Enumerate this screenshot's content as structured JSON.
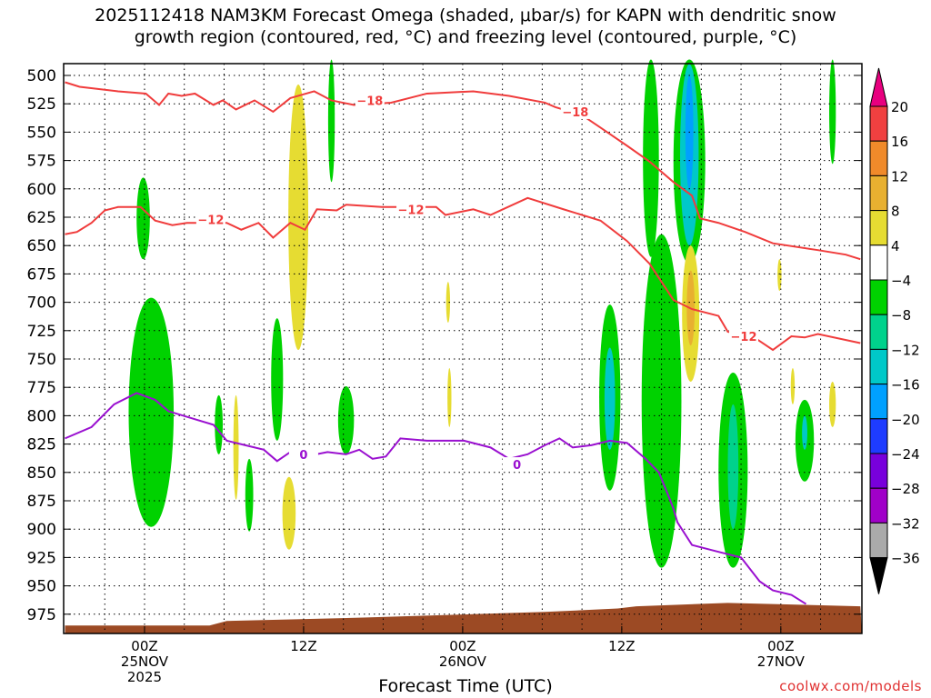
{
  "chart_data": {
    "type": "time-height",
    "title_line1": "2025112418 NAM3KM Forecast Omega (shaded, μbar/s) for KAPN with dendritic snow",
    "title_line2": "growth region (contoured, red, °C) and freezing level (contoured, purple, °C)",
    "xlabel": "Forecast Time (UTC)",
    "xlim_hours": [
      0,
      60
    ],
    "ylim_hpa": [
      490,
      992
    ],
    "y_ticks": [
      500,
      525,
      550,
      575,
      600,
      625,
      650,
      675,
      700,
      725,
      750,
      775,
      800,
      825,
      850,
      875,
      900,
      925,
      950,
      975
    ],
    "x_ticks": [
      {
        "hour": 6,
        "lines": [
          "00Z",
          "25NOV",
          "2025"
        ]
      },
      {
        "hour": 18,
        "lines": [
          "12Z"
        ]
      },
      {
        "hour": 30,
        "lines": [
          "00Z",
          "26NOV"
        ]
      },
      {
        "hour": 42,
        "lines": [
          "12Z"
        ]
      },
      {
        "hour": 54,
        "lines": [
          "00Z",
          "27NOV"
        ]
      }
    ],
    "grid_every_hours": 3,
    "colorbar": {
      "labels": [
        "20",
        "16",
        "12",
        "8",
        "4",
        "−4",
        "−8",
        "−12",
        "−16",
        "−20",
        "−24",
        "−28",
        "−32",
        "−36"
      ],
      "over_color": "#e8007f",
      "under_color": "#000000",
      "colors": [
        "#f04040",
        "#f08a2a",
        "#e8b030",
        "#e6dc32",
        "#ffffff",
        "#00d200",
        "#00d28c",
        "#00c8c8",
        "#00a0ff",
        "#1e3cff",
        "#7800dc",
        "#a000c8",
        "#aaaaaa"
      ]
    },
    "contours": [
      {
        "name": "dgz-minus18",
        "level": "−18",
        "color": "#f03c3c",
        "labels": [
          {
            "hour": 23,
            "p": 522
          },
          {
            "hour": 38.5,
            "p": 532
          }
        ],
        "points": [
          [
            0,
            506
          ],
          [
            1.1,
            510
          ],
          [
            4,
            514
          ],
          [
            6.1,
            516
          ],
          [
            7.1,
            526
          ],
          [
            7.8,
            516
          ],
          [
            8.8,
            518
          ],
          [
            9.8,
            516
          ],
          [
            11.2,
            526
          ],
          [
            11.9,
            522
          ],
          [
            12.9,
            530
          ],
          [
            14.3,
            522
          ],
          [
            15.7,
            532
          ],
          [
            17,
            520
          ],
          [
            18.8,
            514
          ],
          [
            20.1,
            522
          ],
          [
            21.8,
            526
          ],
          [
            24.6,
            524
          ],
          [
            27.3,
            516
          ],
          [
            30.8,
            514
          ],
          [
            33.5,
            518
          ],
          [
            36.2,
            524
          ],
          [
            37,
            528
          ],
          [
            39,
            535
          ],
          [
            40.4,
            546
          ],
          [
            42.4,
            562
          ],
          [
            44.1,
            576
          ],
          [
            45.9,
            594
          ],
          [
            47.3,
            606
          ],
          [
            47.9,
            626
          ],
          [
            49.3,
            630
          ],
          [
            51.3,
            638
          ],
          [
            53.4,
            648
          ],
          [
            56.8,
            654
          ],
          [
            58.9,
            658
          ],
          [
            60,
            662
          ]
        ]
      },
      {
        "name": "dgz-minus12",
        "level": "−12",
        "color": "#f03c3c",
        "labels": [
          {
            "hour": 11,
            "p": 627
          },
          {
            "hour": 26.1,
            "p": 618
          },
          {
            "hour": 51.2,
            "p": 730
          }
        ],
        "points": [
          [
            0,
            640
          ],
          [
            0.9,
            638
          ],
          [
            2,
            630
          ],
          [
            3,
            619
          ],
          [
            4,
            616
          ],
          [
            5.7,
            616
          ],
          [
            6.8,
            628
          ],
          [
            8.1,
            632
          ],
          [
            9.2,
            630
          ],
          [
            12.2,
            630
          ],
          [
            13.3,
            636
          ],
          [
            14.6,
            630
          ],
          [
            15.7,
            643
          ],
          [
            17,
            630
          ],
          [
            18.1,
            636
          ],
          [
            19,
            618
          ],
          [
            20.5,
            619
          ],
          [
            21.2,
            614
          ],
          [
            23.9,
            616
          ],
          [
            28,
            616
          ],
          [
            28.7,
            623
          ],
          [
            30.8,
            618
          ],
          [
            32.1,
            623
          ],
          [
            34.9,
            608
          ],
          [
            37.6,
            618
          ],
          [
            40.4,
            628
          ],
          [
            42.4,
            646
          ],
          [
            44.1,
            666
          ],
          [
            45.9,
            698
          ],
          [
            47.3,
            706
          ],
          [
            49.3,
            712
          ],
          [
            50,
            726
          ],
          [
            52,
            731
          ],
          [
            53.4,
            742
          ],
          [
            54.8,
            730
          ],
          [
            55.8,
            731
          ],
          [
            56.8,
            728
          ],
          [
            60,
            736
          ]
        ]
      },
      {
        "name": "freezing-level",
        "level": "0",
        "color": "#9a10d0",
        "labels": [
          {
            "hour": 18,
            "p": 834
          },
          {
            "hour": 34.1,
            "p": 843
          }
        ],
        "points": [
          [
            0,
            820
          ],
          [
            2,
            810
          ],
          [
            3.7,
            790
          ],
          [
            5.4,
            780
          ],
          [
            6.8,
            786
          ],
          [
            7.8,
            796
          ],
          [
            9.5,
            802
          ],
          [
            11.2,
            808
          ],
          [
            12.2,
            822
          ],
          [
            13.6,
            826
          ],
          [
            15,
            830
          ],
          [
            16,
            840
          ],
          [
            17,
            832
          ],
          [
            18.1,
            836
          ],
          [
            19.8,
            832
          ],
          [
            21.2,
            834
          ],
          [
            22.2,
            830
          ],
          [
            23.2,
            838
          ],
          [
            24.2,
            836
          ],
          [
            25.3,
            820
          ],
          [
            27.3,
            822
          ],
          [
            30.1,
            822
          ],
          [
            32.1,
            828
          ],
          [
            33.5,
            838
          ],
          [
            34.9,
            834
          ],
          [
            36.2,
            826
          ],
          [
            37.3,
            820
          ],
          [
            38.3,
            828
          ],
          [
            39.7,
            826
          ],
          [
            41.1,
            822
          ],
          [
            42.4,
            824
          ],
          [
            43.8,
            838
          ],
          [
            44.8,
            850
          ],
          [
            45.5,
            870
          ],
          [
            45.9,
            882
          ],
          [
            46.2,
            894
          ],
          [
            47.3,
            914
          ],
          [
            49.3,
            920
          ],
          [
            51,
            925
          ],
          [
            52.4,
            946
          ],
          [
            53.4,
            954
          ],
          [
            54.8,
            958
          ],
          [
            55.9,
            966
          ]
        ]
      }
    ],
    "terrain_surface_hpa": [
      [
        0,
        985
      ],
      [
        10.9,
        985
      ],
      [
        12.2,
        981
      ],
      [
        22.5,
        978
      ],
      [
        30.8,
        975
      ],
      [
        36.2,
        973
      ],
      [
        41.7,
        970
      ],
      [
        43.1,
        968
      ],
      [
        50,
        965
      ],
      [
        60,
        968
      ]
    ],
    "omega_regions": [
      {
        "hour": 6.5,
        "p_top": 696,
        "p_bot": 898,
        "half_width_h": 1.7,
        "value": -6
      },
      {
        "hour": 5.9,
        "p_top": 590,
        "p_bot": 662,
        "half_width_h": 0.5,
        "value": -6
      },
      {
        "hour": 17.6,
        "p_top": 508,
        "p_bot": 742,
        "half_width_h": 0.75,
        "value": 6
      },
      {
        "hour": 20.1,
        "p_top": 486,
        "p_bot": 594,
        "half_width_h": 0.25,
        "value": -6
      },
      {
        "hour": 16,
        "p_top": 714,
        "p_bot": 822,
        "half_width_h": 0.45,
        "value": -6
      },
      {
        "hour": 11.6,
        "p_top": 782,
        "p_bot": 834,
        "half_width_h": 0.3,
        "value": -6
      },
      {
        "hour": 12.9,
        "p_top": 782,
        "p_bot": 874,
        "half_width_h": 0.2,
        "value": 6
      },
      {
        "hour": 13.9,
        "p_top": 838,
        "p_bot": 902,
        "half_width_h": 0.3,
        "value": -6
      },
      {
        "hour": 16.9,
        "p_top": 854,
        "p_bot": 918,
        "half_width_h": 0.5,
        "value": 6
      },
      {
        "hour": 21.2,
        "p_top": 774,
        "p_bot": 834,
        "half_width_h": 0.6,
        "value": -6
      },
      {
        "hour": 28.9,
        "p_top": 682,
        "p_bot": 718,
        "half_width_h": 0.15,
        "value": 6
      },
      {
        "hour": 29,
        "p_top": 758,
        "p_bot": 810,
        "half_width_h": 0.15,
        "value": 6
      },
      {
        "hour": 41.1,
        "p_top": 702,
        "p_bot": 866,
        "half_width_h": 0.8,
        "value": -6
      },
      {
        "hour": 41.1,
        "p_top": 740,
        "p_bot": 830,
        "half_width_h": 0.4,
        "value": -14
      },
      {
        "hour": 44.2,
        "p_top": 486,
        "p_bot": 660,
        "half_width_h": 0.6,
        "value": -6
      },
      {
        "hour": 45,
        "p_top": 640,
        "p_bot": 934,
        "half_width_h": 1.5,
        "value": -6
      },
      {
        "hour": 47.1,
        "p_top": 486,
        "p_bot": 666,
        "half_width_h": 1.2,
        "value": -6
      },
      {
        "hour": 47.1,
        "p_top": 490,
        "p_bot": 650,
        "half_width_h": 0.7,
        "value": -14
      },
      {
        "hour": 47.1,
        "p_top": 500,
        "p_bot": 600,
        "half_width_h": 0.3,
        "value": -18
      },
      {
        "hour": 47.2,
        "p_top": 650,
        "p_bot": 770,
        "half_width_h": 0.65,
        "value": 6
      },
      {
        "hour": 47.2,
        "p_top": 672,
        "p_bot": 738,
        "half_width_h": 0.3,
        "value": 10
      },
      {
        "hour": 50.4,
        "p_top": 762,
        "p_bot": 934,
        "half_width_h": 1.1,
        "value": -6
      },
      {
        "hour": 50.4,
        "p_top": 790,
        "p_bot": 900,
        "half_width_h": 0.4,
        "value": -10
      },
      {
        "hour": 57.9,
        "p_top": 486,
        "p_bot": 578,
        "half_width_h": 0.25,
        "value": -6
      },
      {
        "hour": 53.9,
        "p_top": 662,
        "p_bot": 690,
        "half_width_h": 0.15,
        "value": 6
      },
      {
        "hour": 54.9,
        "p_top": 758,
        "p_bot": 790,
        "half_width_h": 0.15,
        "value": 6
      },
      {
        "hour": 57.9,
        "p_top": 770,
        "p_bot": 810,
        "half_width_h": 0.25,
        "value": 6
      },
      {
        "hour": 55.8,
        "p_top": 786,
        "p_bot": 858,
        "half_width_h": 0.7,
        "value": -6
      },
      {
        "hour": 55.8,
        "p_top": 800,
        "p_bot": 830,
        "half_width_h": 0.2,
        "value": -14
      }
    ]
  },
  "watermark": "coolwx.com/models"
}
